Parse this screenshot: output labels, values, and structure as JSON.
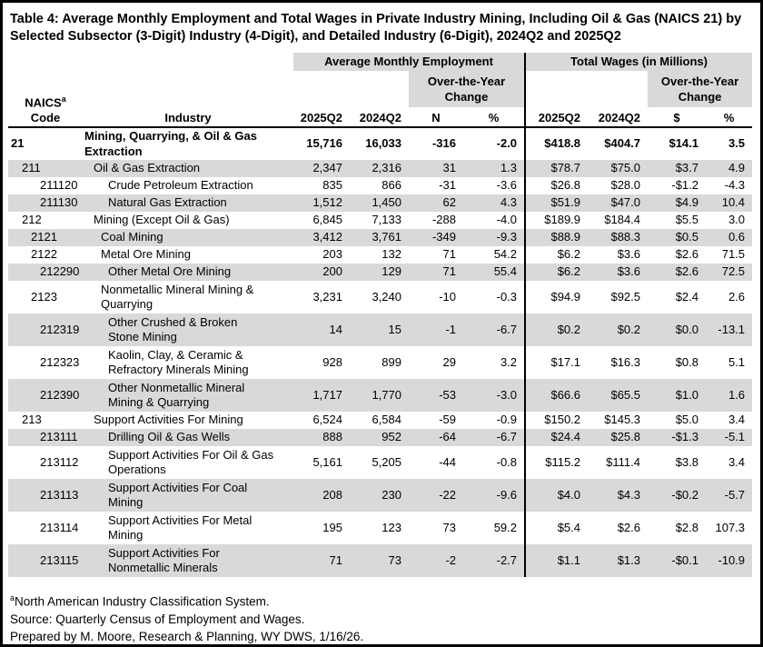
{
  "title": "Table 4: Average Monthly Employment and Total Wages in Private Industry Mining, Including Oil & Gas (NAICS 21) by Selected Subsector (3-Digit) Industry (4-Digit), and Detailed Industry (6-Digit), 2024Q2 and 2025Q2",
  "colors": {
    "stripe": "#d9d9d9",
    "header_fill": "#d9d9d9",
    "border": "#000000",
    "text": "#000000"
  },
  "table": {
    "group_headers": [
      "Average Monthly Employment",
      "Total Wages (in Millions)"
    ],
    "oty_label": "Over-the-Year Change",
    "naics_label": "NAICS",
    "naics_footnote_marker": "a",
    "code_label": "Code",
    "industry_label": "Industry",
    "emp_columns": [
      "2025Q2",
      "2024Q2",
      "N",
      "%"
    ],
    "wage_columns": [
      "2025Q2",
      "2024Q2",
      "$",
      "%"
    ],
    "rows": [
      {
        "code": "21",
        "industry": "Mining, Quarrying, & Oil & Gas\nExtraction",
        "level": 0,
        "bold": true,
        "shaded": false,
        "e25": "15,716",
        "e24": "16,033",
        "n": "-316",
        "ep": "-2.0",
        "w25": "$418.8",
        "w24": "$404.7",
        "wd": "$14.1",
        "wp": "3.5"
      },
      {
        "code": "211",
        "industry": "Oil & Gas Extraction",
        "level": 1,
        "bold": false,
        "shaded": true,
        "e25": "2,347",
        "e24": "2,316",
        "n": "31",
        "ep": "1.3",
        "w25": "$78.7",
        "w24": "$75.0",
        "wd": "$3.7",
        "wp": "4.9"
      },
      {
        "code": "211120",
        "industry": "Crude Petroleum Extraction",
        "level": 3,
        "bold": false,
        "shaded": false,
        "e25": "835",
        "e24": "866",
        "n": "-31",
        "ep": "-3.6",
        "w25": "$26.8",
        "w24": "$28.0",
        "wd": "-$1.2",
        "wp": "-4.3"
      },
      {
        "code": "211130",
        "industry": "Natural Gas Extraction",
        "level": 3,
        "bold": false,
        "shaded": true,
        "e25": "1,512",
        "e24": "1,450",
        "n": "62",
        "ep": "4.3",
        "w25": "$51.9",
        "w24": "$47.0",
        "wd": "$4.9",
        "wp": "10.4"
      },
      {
        "code": "212",
        "industry": "Mining (Except Oil & Gas)",
        "level": 1,
        "bold": false,
        "shaded": false,
        "e25": "6,845",
        "e24": "7,133",
        "n": "-288",
        "ep": "-4.0",
        "w25": "$189.9",
        "w24": "$184.4",
        "wd": "$5.5",
        "wp": "3.0"
      },
      {
        "code": "2121",
        "industry": "Coal Mining",
        "level": 2,
        "bold": false,
        "shaded": true,
        "e25": "3,412",
        "e24": "3,761",
        "n": "-349",
        "ep": "-9.3",
        "w25": "$88.9",
        "w24": "$88.3",
        "wd": "$0.5",
        "wp": "0.6"
      },
      {
        "code": "2122",
        "industry": "Metal Ore Mining",
        "level": 2,
        "bold": false,
        "shaded": false,
        "e25": "203",
        "e24": "132",
        "n": "71",
        "ep": "54.2",
        "w25": "$6.2",
        "w24": "$3.6",
        "wd": "$2.6",
        "wp": "71.5"
      },
      {
        "code": "212290",
        "industry": "Other Metal Ore Mining",
        "level": 3,
        "bold": false,
        "shaded": true,
        "e25": "200",
        "e24": "129",
        "n": "71",
        "ep": "55.4",
        "w25": "$6.2",
        "w24": "$3.6",
        "wd": "$2.6",
        "wp": "72.5"
      },
      {
        "code": "2123",
        "industry": "Nonmetallic Mineral Mining &\nQuarrying",
        "level": 2,
        "bold": false,
        "shaded": false,
        "e25": "3,231",
        "e24": "3,240",
        "n": "-10",
        "ep": "-0.3",
        "w25": "$94.9",
        "w24": "$92.5",
        "wd": "$2.4",
        "wp": "2.6"
      },
      {
        "code": "212319",
        "industry": "Other Crushed & Broken\nStone Mining",
        "level": 3,
        "bold": false,
        "shaded": true,
        "e25": "14",
        "e24": "15",
        "n": "-1",
        "ep": "-6.7",
        "w25": "$0.2",
        "w24": "$0.2",
        "wd": "$0.0",
        "wp": "-13.1"
      },
      {
        "code": "212323",
        "industry": "Kaolin, Clay, & Ceramic &\nRefractory Minerals Mining",
        "level": 3,
        "bold": false,
        "shaded": false,
        "e25": "928",
        "e24": "899",
        "n": "29",
        "ep": "3.2",
        "w25": "$17.1",
        "w24": "$16.3",
        "wd": "$0.8",
        "wp": "5.1"
      },
      {
        "code": "212390",
        "industry": "Other Nonmetallic Mineral\nMining & Quarrying",
        "level": 3,
        "bold": false,
        "shaded": true,
        "e25": "1,717",
        "e24": "1,770",
        "n": "-53",
        "ep": "-3.0",
        "w25": "$66.6",
        "w24": "$65.5",
        "wd": "$1.0",
        "wp": "1.6"
      },
      {
        "code": "213",
        "industry": "Support Activities For Mining",
        "level": 1,
        "bold": false,
        "shaded": false,
        "e25": "6,524",
        "e24": "6,584",
        "n": "-59",
        "ep": "-0.9",
        "w25": "$150.2",
        "w24": "$145.3",
        "wd": "$5.0",
        "wp": "3.4"
      },
      {
        "code": "213111",
        "industry": "Drilling Oil & Gas Wells",
        "level": 3,
        "bold": false,
        "shaded": true,
        "e25": "888",
        "e24": "952",
        "n": "-64",
        "ep": "-6.7",
        "w25": "$24.4",
        "w24": "$25.8",
        "wd": "-$1.3",
        "wp": "-5.1"
      },
      {
        "code": "213112",
        "industry": "Support Activities For Oil & Gas\nOperations",
        "level": 3,
        "bold": false,
        "shaded": false,
        "e25": "5,161",
        "e24": "5,205",
        "n": "-44",
        "ep": "-0.8",
        "w25": "$115.2",
        "w24": "$111.4",
        "wd": "$3.8",
        "wp": "3.4"
      },
      {
        "code": "213113",
        "industry": "Support Activities For Coal\nMining",
        "level": 3,
        "bold": false,
        "shaded": true,
        "e25": "208",
        "e24": "230",
        "n": "-22",
        "ep": "-9.6",
        "w25": "$4.0",
        "w24": "$4.3",
        "wd": "-$0.2",
        "wp": "-5.7"
      },
      {
        "code": "213114",
        "industry": "Support Activities For Metal\nMining",
        "level": 3,
        "bold": false,
        "shaded": false,
        "e25": "195",
        "e24": "123",
        "n": "73",
        "ep": "59.2",
        "w25": "$5.4",
        "w24": "$2.6",
        "wd": "$2.8",
        "wp": "107.3"
      },
      {
        "code": "213115",
        "industry": "Support Activities For\nNonmetallic Minerals",
        "level": 3,
        "bold": false,
        "shaded": true,
        "e25": "71",
        "e24": "73",
        "n": "-2",
        "ep": "-2.7",
        "w25": "$1.1",
        "w24": "$1.3",
        "wd": "-$0.1",
        "wp": "-10.9"
      }
    ]
  },
  "footnotes": {
    "naics_marker": "a",
    "naics": "North American Industry Classification System.",
    "source": "Source: Quarterly Census of Employment and Wages.",
    "prepared": "Prepared by M. Moore, Research & Planning, WY DWS, 1/16/26."
  }
}
